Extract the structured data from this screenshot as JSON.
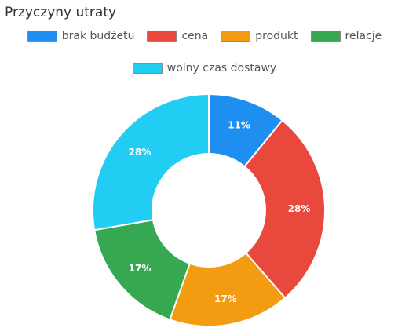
{
  "title": "Przyczyny utraty",
  "chart_data": {
    "type": "pie",
    "variant": "doughnut",
    "title": "Przyczyny utraty",
    "legend_position": "top",
    "categories": [
      "brak budżetu",
      "cena",
      "produkt",
      "relacje",
      "wolny czas dostawy"
    ],
    "values": [
      11,
      28,
      17,
      17,
      28
    ],
    "data_labels": [
      "11%",
      "28%",
      "17%",
      "17%",
      "28%"
    ],
    "colors": [
      "#1f8ef1",
      "#e8493c",
      "#f39c12",
      "#36a852",
      "#22cdf4"
    ]
  }
}
